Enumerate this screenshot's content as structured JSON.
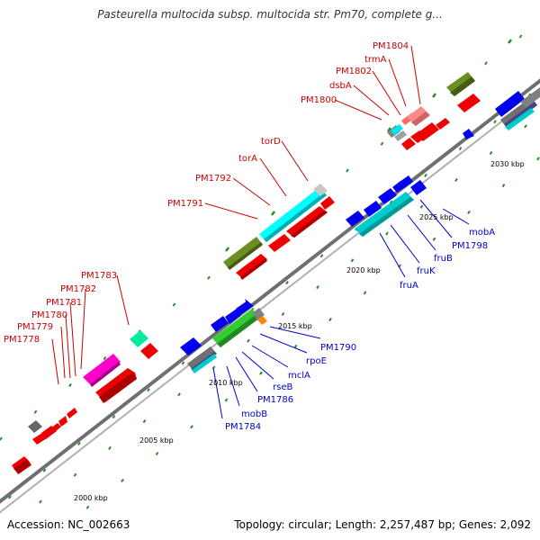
{
  "title": "Pasteurella multocida subsp. multocida str. Pm70, complete g...",
  "footer": {
    "accession": "Accession: NC_002663",
    "summary": "Topology: circular; Length: 2,257,487 bp; Genes: 2,092"
  },
  "colors": {
    "backbone": "#808080",
    "tick": "#2a8a2a",
    "forward_label": "#cc0000",
    "reverse_label": "#0000cc"
  },
  "scale_labels": [
    "2000 kbp",
    "2005 kbp",
    "2010 kbp",
    "2015 kbp",
    "2020 kbp",
    "2025 kbp",
    "2030 kbp"
  ],
  "forward_gene_labels": [
    "PM1778",
    "PM1779",
    "PM1780",
    "PM1781",
    "PM1782",
    "PM1783",
    "PM1791",
    "PM1792",
    "torA",
    "torD",
    "PM1800",
    "dsbA",
    "PM1802",
    "trmA",
    "PM1804"
  ],
  "reverse_gene_labels": [
    "PM1784",
    "mobB",
    "PM1786",
    "rseB",
    "mclA",
    "rpoE",
    "PM1790",
    "fruA",
    "fruK",
    "fruB",
    "PM1798",
    "mobA"
  ]
}
